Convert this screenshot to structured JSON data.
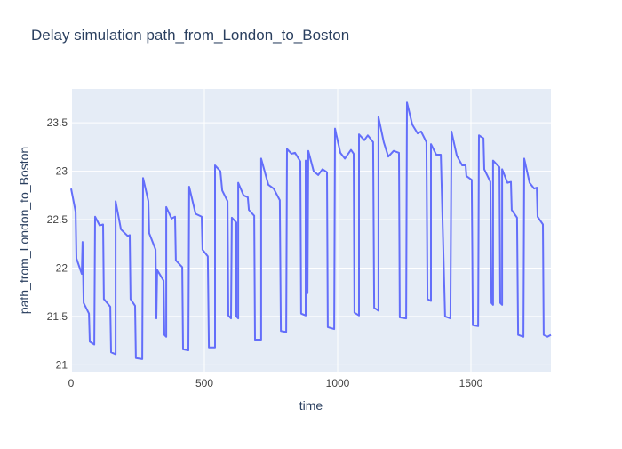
{
  "chart_data": {
    "type": "line",
    "title": "Delay simulation path_from_London_to_Boston",
    "x_label": "time",
    "y_label": "path_from_London_to_Boston",
    "color": "#636efa",
    "grid": true,
    "xlim": [
      0,
      1800
    ],
    "xticks": [
      0,
      500,
      1000,
      1500
    ],
    "ylim": [
      20.93,
      23.85
    ],
    "yticks": [
      21,
      21.5,
      22,
      22.5,
      23,
      23.5
    ],
    "x": [
      0,
      17,
      20,
      40,
      43,
      47,
      67,
      70,
      87,
      90,
      107,
      120,
      123,
      147,
      150,
      167,
      167,
      187,
      213,
      220,
      223,
      240,
      243,
      267,
      270,
      290,
      293,
      317,
      320,
      323,
      347,
      350,
      357,
      357,
      377,
      390,
      393,
      417,
      420,
      440,
      443,
      467,
      490,
      493,
      513,
      517,
      540,
      540,
      560,
      567,
      587,
      590,
      600,
      603,
      620,
      620,
      627,
      627,
      647,
      663,
      667,
      687,
      690,
      713,
      713,
      740,
      760,
      783,
      787,
      807,
      810,
      827,
      840,
      860,
      863,
      880,
      880,
      887,
      887,
      890,
      910,
      927,
      943,
      960,
      963,
      987,
      990,
      1010,
      1027,
      1050,
      1060,
      1063,
      1080,
      1080,
      1100,
      1113,
      1133,
      1137,
      1153,
      1153,
      1173,
      1190,
      1210,
      1230,
      1233,
      1257,
      1260,
      1280,
      1300,
      1313,
      1333,
      1337,
      1350,
      1350,
      1370,
      1387,
      1403,
      1423,
      1427,
      1447,
      1467,
      1480,
      1483,
      1503,
      1507,
      1527,
      1530,
      1547,
      1550,
      1573,
      1577,
      1583,
      1583,
      1607,
      1610,
      1617,
      1617,
      1637,
      1650,
      1653,
      1673,
      1677,
      1697,
      1700,
      1720,
      1737,
      1747,
      1750,
      1770,
      1773,
      1787,
      1800
    ],
    "values": [
      22.82,
      22.58,
      22.1,
      21.94,
      22.27,
      21.64,
      21.53,
      21.24,
      21.21,
      22.53,
      22.44,
      22.45,
      21.68,
      21.6,
      21.13,
      21.11,
      22.69,
      22.4,
      22.33,
      22.34,
      21.68,
      21.61,
      21.07,
      21.06,
      22.93,
      22.69,
      22.36,
      22.19,
      21.48,
      21.98,
      21.87,
      21.31,
      21.29,
      22.63,
      22.51,
      22.53,
      22.08,
      22.01,
      21.16,
      21.15,
      22.84,
      22.56,
      22.53,
      22.19,
      22.12,
      21.18,
      21.18,
      23.06,
      23.0,
      22.8,
      22.69,
      21.51,
      21.48,
      22.52,
      22.47,
      21.5,
      21.48,
      22.88,
      22.75,
      22.73,
      22.6,
      22.54,
      21.26,
      21.26,
      23.13,
      22.86,
      22.82,
      22.7,
      21.35,
      21.34,
      23.23,
      23.18,
      23.19,
      23.1,
      21.53,
      21.51,
      23.11,
      23.1,
      21.74,
      23.21,
      23.0,
      22.96,
      23.02,
      22.99,
      21.39,
      21.37,
      23.44,
      23.19,
      23.13,
      23.22,
      23.18,
      21.54,
      21.51,
      23.38,
      23.32,
      23.37,
      23.3,
      21.59,
      21.56,
      23.56,
      23.3,
      23.15,
      23.21,
      23.19,
      21.49,
      21.48,
      23.71,
      23.48,
      23.39,
      23.41,
      23.3,
      21.68,
      21.66,
      23.28,
      23.17,
      23.17,
      21.5,
      21.48,
      23.41,
      23.16,
      23.06,
      23.06,
      22.95,
      22.91,
      21.41,
      21.4,
      23.37,
      23.34,
      23.02,
      22.89,
      21.64,
      21.62,
      23.11,
      23.04,
      21.64,
      21.62,
      23.02,
      22.88,
      22.89,
      22.6,
      22.52,
      21.31,
      21.29,
      23.13,
      22.88,
      22.82,
      22.83,
      22.53,
      22.45,
      21.31,
      21.29,
      21.31
    ]
  }
}
